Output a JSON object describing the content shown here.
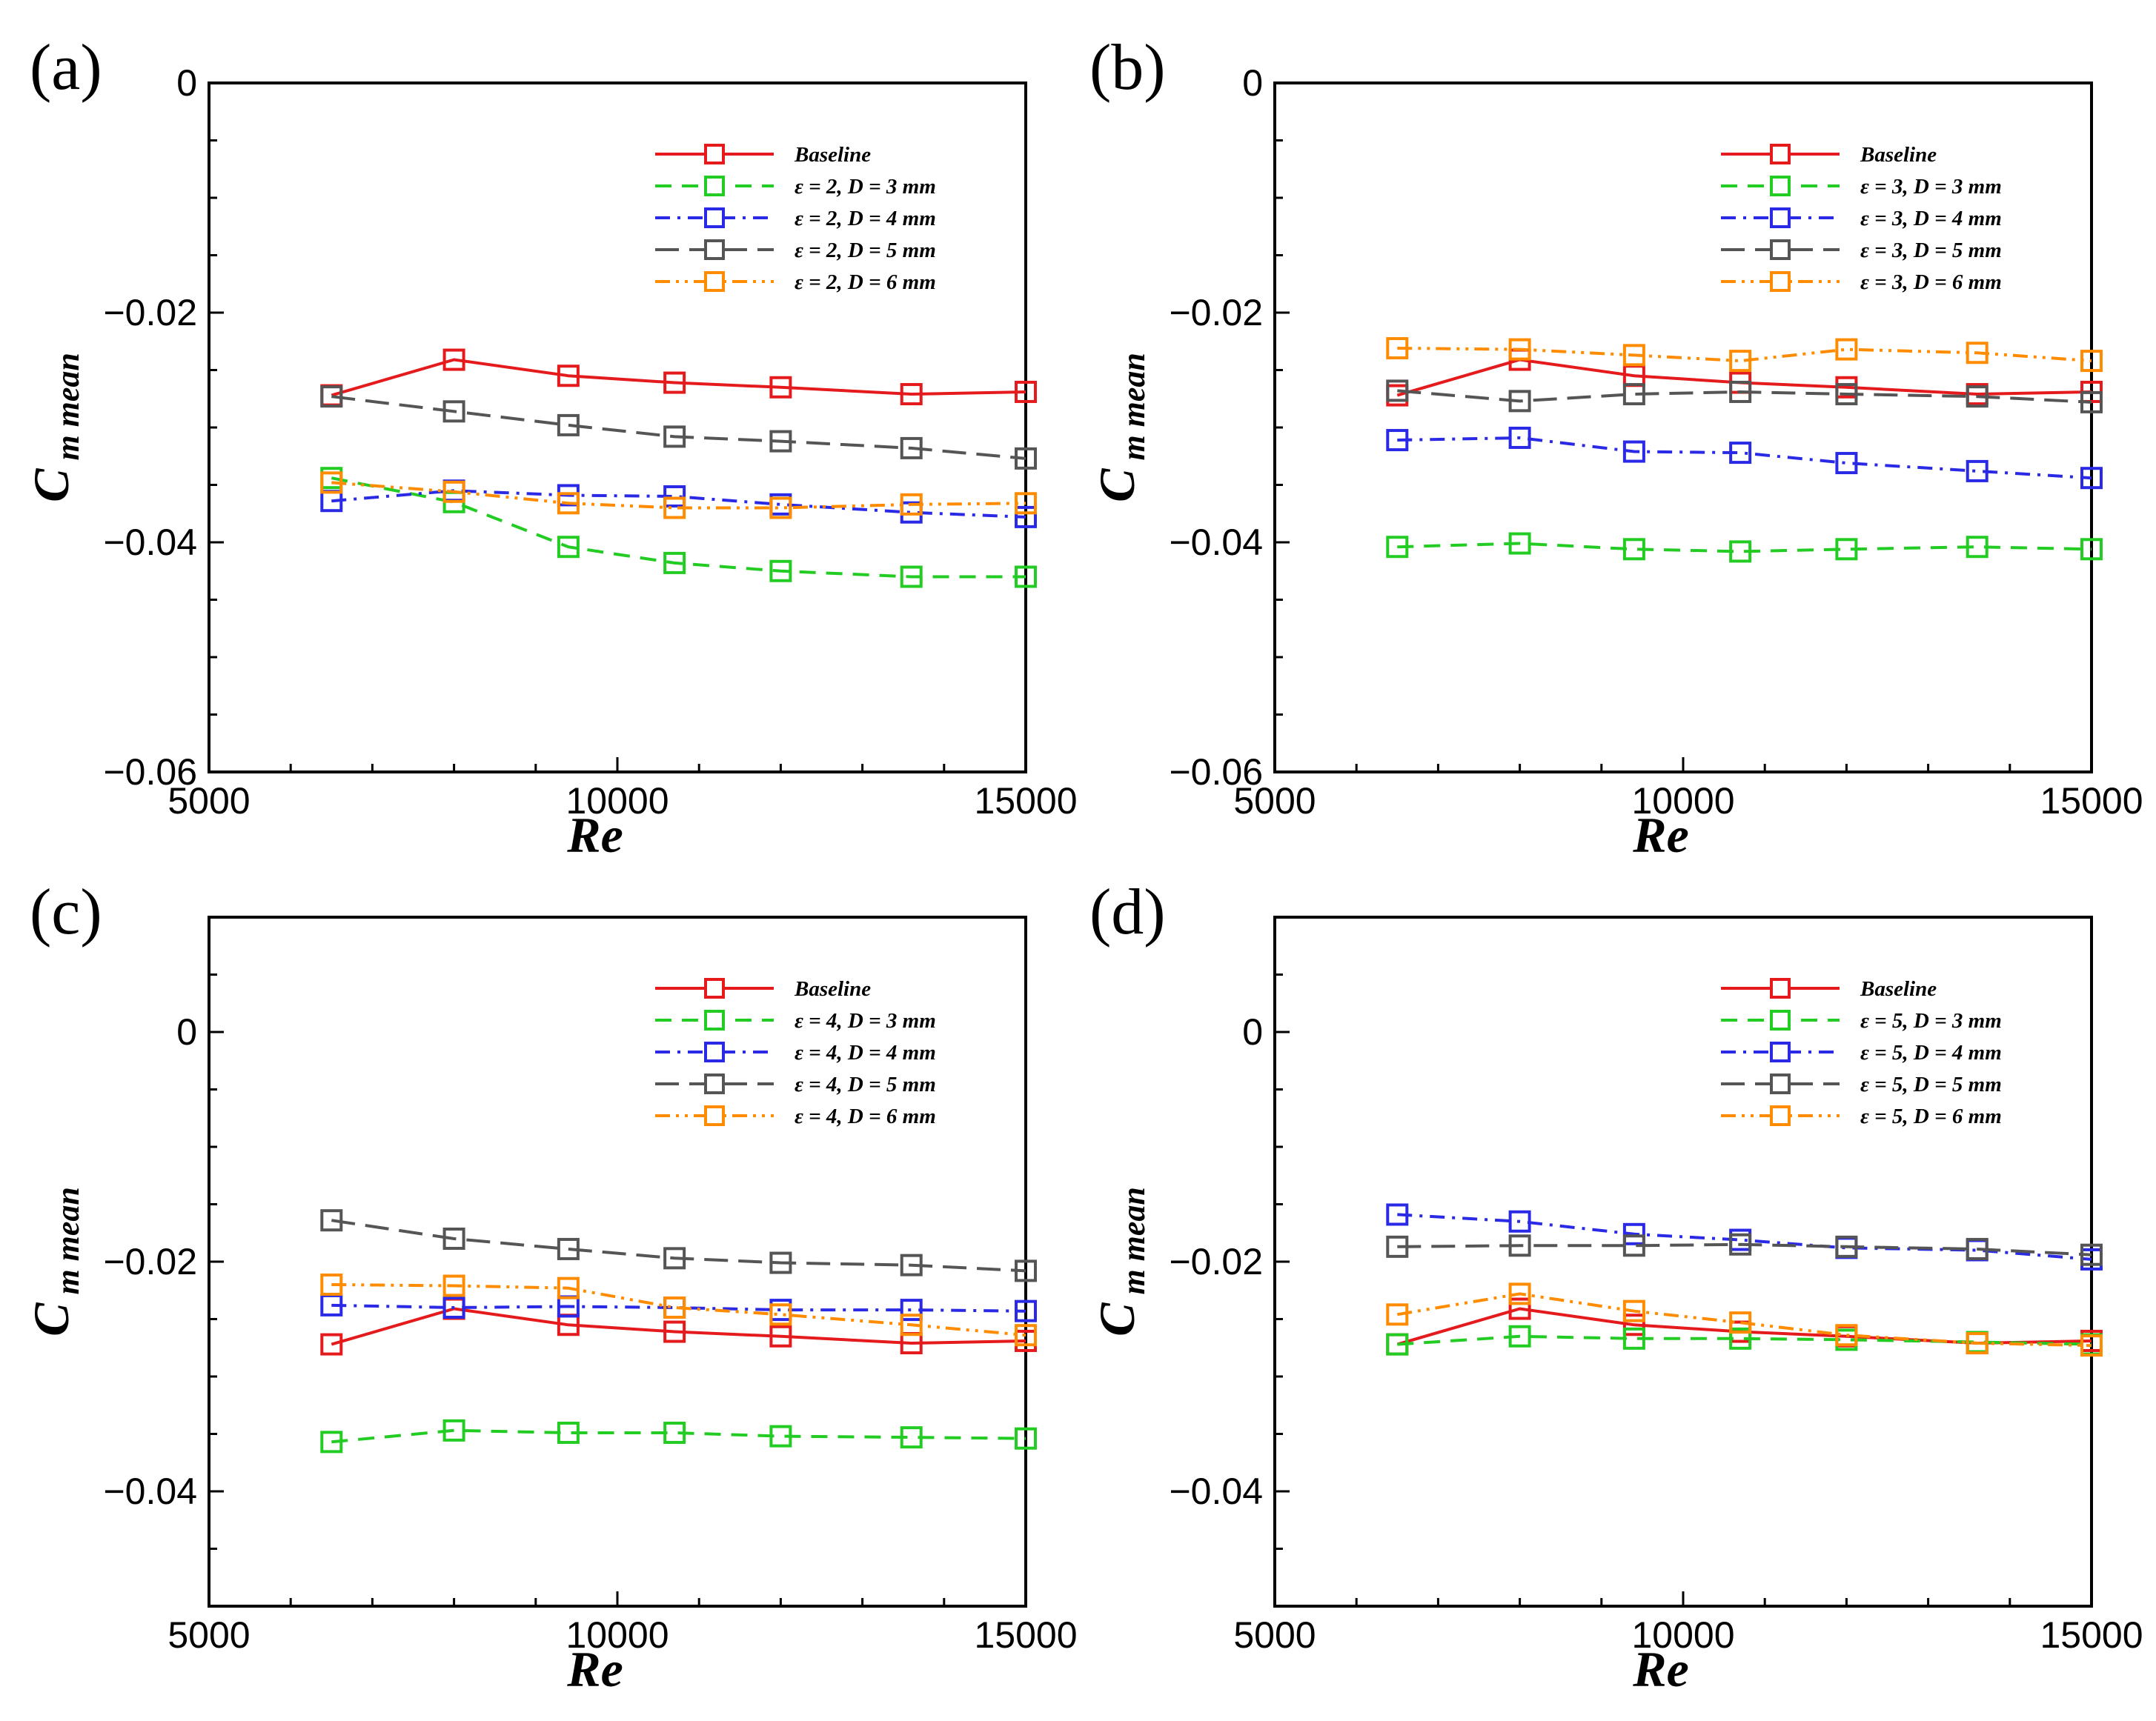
{
  "figure": {
    "series_styles": {
      "Baseline": {
        "color": "#e41a1c",
        "dash": "solid"
      },
      "D3": {
        "color": "#22cc22",
        "dash": "dash"
      },
      "D4": {
        "color": "#2a2ae6",
        "dash": "dashdot"
      },
      "D5": {
        "color": "#555555",
        "dash": "longdash"
      },
      "D6": {
        "color": "#ff8c00",
        "dash": "dashdotdot"
      }
    }
  },
  "chart_data": [
    {
      "panel_label": "(a)",
      "type": "line",
      "xlabel": "Re",
      "ylabel": "C m mean",
      "xlim": [
        5000,
        15000
      ],
      "ylim": [
        -0.06,
        0
      ],
      "xticks": [
        5000,
        10000,
        15000
      ],
      "yticks": [
        0,
        -0.02,
        -0.04,
        -0.06
      ],
      "ytick_labels": [
        "0",
        "−0.02",
        "−0.04",
        "−0.06"
      ],
      "legend_position": "top-right",
      "series": [
        {
          "name": "Baseline",
          "style": "Baseline",
          "x": [
            6500,
            8000,
            9400,
            10700,
            12000,
            13600,
            15000
          ],
          "y": [
            -0.0272,
            -0.0241,
            -0.0255,
            -0.0261,
            -0.0265,
            -0.0271,
            -0.0269
          ]
        },
        {
          "name": "ε = 2, D = 3 mm",
          "style": "D3",
          "x": [
            6500,
            8000,
            9400,
            10700,
            12000,
            13600,
            15000
          ],
          "y": [
            -0.0344,
            -0.0365,
            -0.0404,
            -0.0418,
            -0.0425,
            -0.043,
            -0.043
          ]
        },
        {
          "name": "ε = 2, D = 4 mm",
          "style": "D4",
          "x": [
            6500,
            8000,
            9400,
            10700,
            12000,
            13600,
            15000
          ],
          "y": [
            -0.0364,
            -0.0355,
            -0.0359,
            -0.036,
            -0.0367,
            -0.0374,
            -0.0378
          ]
        },
        {
          "name": "ε = 2, D = 5 mm",
          "style": "D5",
          "x": [
            6500,
            8000,
            9400,
            10700,
            12000,
            13600,
            15000
          ],
          "y": [
            -0.0273,
            -0.0286,
            -0.0298,
            -0.0308,
            -0.0312,
            -0.0318,
            -0.0327
          ]
        },
        {
          "name": "ε = 2, D = 6 mm",
          "style": "D6",
          "x": [
            6500,
            8000,
            9400,
            10700,
            12000,
            13600,
            15000
          ],
          "y": [
            -0.0348,
            -0.0356,
            -0.0366,
            -0.037,
            -0.037,
            -0.0367,
            -0.0366
          ]
        }
      ]
    },
    {
      "panel_label": "(b)",
      "type": "line",
      "xlabel": "Re",
      "ylabel": "C m mean",
      "xlim": [
        5000,
        15000
      ],
      "ylim": [
        -0.06,
        0
      ],
      "xticks": [
        5000,
        10000,
        15000
      ],
      "yticks": [
        0,
        -0.02,
        -0.04,
        -0.06
      ],
      "ytick_labels": [
        "0",
        "−0.02",
        "−0.04",
        "−0.06"
      ],
      "legend_position": "top-right",
      "series": [
        {
          "name": "Baseline",
          "style": "Baseline",
          "x": [
            6500,
            8000,
            9400,
            10700,
            12000,
            13600,
            15000
          ],
          "y": [
            -0.0272,
            -0.0241,
            -0.0255,
            -0.0261,
            -0.0265,
            -0.0271,
            -0.0269
          ]
        },
        {
          "name": "ε = 3, D = 3 mm",
          "style": "D3",
          "x": [
            6500,
            8000,
            9400,
            10700,
            12000,
            13600,
            15000
          ],
          "y": [
            -0.0404,
            -0.0401,
            -0.0406,
            -0.0408,
            -0.0406,
            -0.0404,
            -0.0406
          ]
        },
        {
          "name": "ε = 3, D = 4 mm",
          "style": "D4",
          "x": [
            6500,
            8000,
            9400,
            10700,
            12000,
            13600,
            15000
          ],
          "y": [
            -0.0311,
            -0.0309,
            -0.0321,
            -0.0322,
            -0.0331,
            -0.0338,
            -0.0344
          ]
        },
        {
          "name": "ε = 3, D = 5 mm",
          "style": "D5",
          "x": [
            6500,
            8000,
            9400,
            10700,
            12000,
            13600,
            15000
          ],
          "y": [
            -0.0268,
            -0.0277,
            -0.0271,
            -0.0269,
            -0.0271,
            -0.0273,
            -0.0278
          ]
        },
        {
          "name": "ε = 3, D = 6 mm",
          "style": "D6",
          "x": [
            6500,
            8000,
            9400,
            10700,
            12000,
            13600,
            15000
          ],
          "y": [
            -0.0231,
            -0.0232,
            -0.0237,
            -0.0242,
            -0.0232,
            -0.0235,
            -0.0242
          ]
        }
      ]
    },
    {
      "panel_label": "(c)",
      "type": "line",
      "xlabel": "Re",
      "ylabel": "C m mean",
      "xlim": [
        5000,
        15000
      ],
      "ylim": [
        -0.05,
        0.01
      ],
      "xticks": [
        5000,
        10000,
        15000
      ],
      "yticks": [
        0,
        -0.02,
        -0.04
      ],
      "ytick_labels": [
        "0",
        "−0.02",
        "−0.04"
      ],
      "legend_position": "top-right",
      "series": [
        {
          "name": "Baseline",
          "style": "Baseline",
          "x": [
            6500,
            8000,
            9400,
            10700,
            12000,
            13600,
            15000
          ],
          "y": [
            -0.0272,
            -0.0241,
            -0.0255,
            -0.0261,
            -0.0265,
            -0.0271,
            -0.0269
          ]
        },
        {
          "name": "ε = 4, D = 3 mm",
          "style": "D3",
          "x": [
            6500,
            8000,
            9400,
            10700,
            12000,
            13600,
            15000
          ],
          "y": [
            -0.0357,
            -0.0347,
            -0.0349,
            -0.0349,
            -0.0352,
            -0.0353,
            -0.0354
          ]
        },
        {
          "name": "ε = 4, D = 4 mm",
          "style": "D4",
          "x": [
            6500,
            8000,
            9400,
            10700,
            12000,
            13600,
            15000
          ],
          "y": [
            -0.0238,
            -0.024,
            -0.0239,
            -0.024,
            -0.0242,
            -0.0242,
            -0.0243
          ]
        },
        {
          "name": "ε = 4, D = 5 mm",
          "style": "D5",
          "x": [
            6500,
            8000,
            9400,
            10700,
            12000,
            13600,
            15000
          ],
          "y": [
            -0.0164,
            -0.018,
            -0.0189,
            -0.0197,
            -0.0201,
            -0.0203,
            -0.0208
          ]
        },
        {
          "name": "ε = 4, D = 6 mm",
          "style": "D6",
          "x": [
            6500,
            8000,
            9400,
            10700,
            12000,
            13600,
            15000
          ],
          "y": [
            -0.022,
            -0.0221,
            -0.0223,
            -0.024,
            -0.0246,
            -0.0255,
            -0.0264
          ]
        }
      ]
    },
    {
      "panel_label": "(d)",
      "type": "line",
      "xlabel": "Re",
      "ylabel": "C m mean",
      "xlim": [
        5000,
        15000
      ],
      "ylim": [
        -0.05,
        0.01
      ],
      "xticks": [
        5000,
        10000,
        15000
      ],
      "yticks": [
        0,
        -0.02,
        -0.04
      ],
      "ytick_labels": [
        "0",
        "−0.02",
        "−0.04"
      ],
      "legend_position": "top-right",
      "series": [
        {
          "name": "Baseline",
          "style": "Baseline",
          "x": [
            6500,
            8000,
            9400,
            10700,
            12000,
            13600,
            15000
          ],
          "y": [
            -0.0272,
            -0.0241,
            -0.0255,
            -0.0261,
            -0.0265,
            -0.0271,
            -0.0269
          ]
        },
        {
          "name": "ε = 5, D = 3 mm",
          "style": "D3",
          "x": [
            6500,
            8000,
            9400,
            10700,
            12000,
            13600,
            15000
          ],
          "y": [
            -0.0272,
            -0.0265,
            -0.0267,
            -0.0267,
            -0.0268,
            -0.027,
            -0.0272
          ]
        },
        {
          "name": "ε = 5, D = 4 mm",
          "style": "D4",
          "x": [
            6500,
            8000,
            9400,
            10700,
            12000,
            13600,
            15000
          ],
          "y": [
            -0.0159,
            -0.0165,
            -0.0176,
            -0.0181,
            -0.0188,
            -0.019,
            -0.0198
          ]
        },
        {
          "name": "ε = 5, D = 5 mm",
          "style": "D5",
          "x": [
            6500,
            8000,
            9400,
            10700,
            12000,
            13600,
            15000
          ],
          "y": [
            -0.0187,
            -0.0186,
            -0.0186,
            -0.0185,
            -0.0187,
            -0.0189,
            -0.0194
          ]
        },
        {
          "name": "ε = 5, D = 6 mm",
          "style": "D6",
          "x": [
            6500,
            8000,
            9400,
            10700,
            12000,
            13600,
            15000
          ],
          "y": [
            -0.0246,
            -0.0228,
            -0.0243,
            -0.0253,
            -0.0264,
            -0.0271,
            -0.0273
          ]
        }
      ]
    }
  ]
}
